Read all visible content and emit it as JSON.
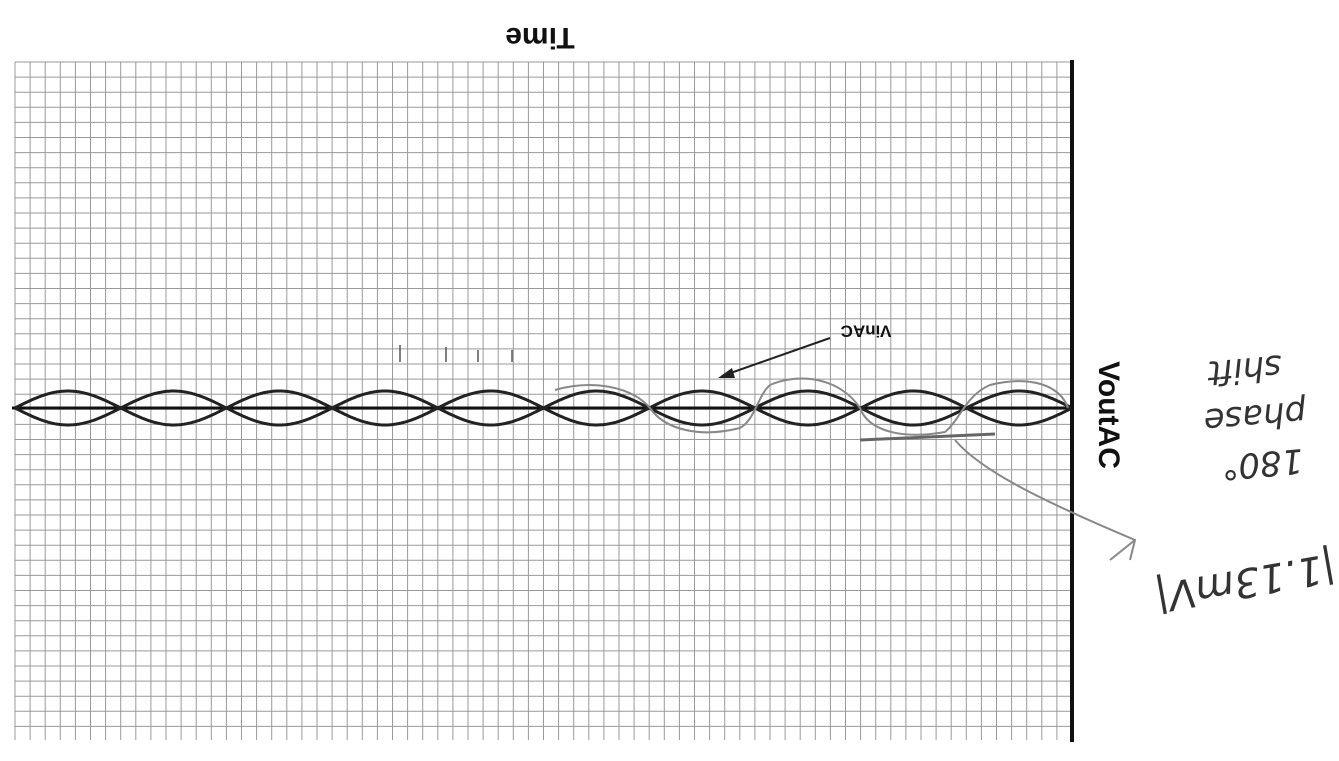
{
  "labels": {
    "time": "Time",
    "vout": "VoutAC",
    "vin": "VinAC"
  },
  "annotations": {
    "amplitude": "|1.13mV|",
    "phase": [
      "180°",
      "phase",
      "shift"
    ]
  }
}
